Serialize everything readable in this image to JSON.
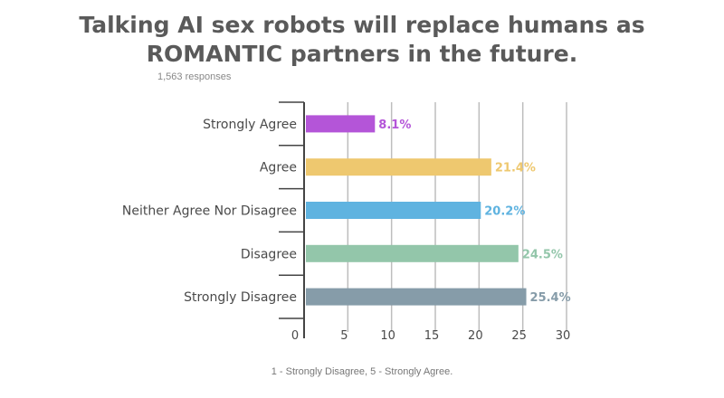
{
  "title_line1": "Talking AI sex robots will replace humans as",
  "title_line2": "ROMANTIC partners in the future.",
  "responses": "1,563 responses",
  "footnote": "1 - Strongly Disagree,  5 - Strongly Agree.",
  "chart_data": {
    "type": "bar",
    "orientation": "horizontal",
    "categories": [
      "Strongly Agree",
      "Agree",
      "Neither Agree Nor Disagree",
      "Disagree",
      "Strongly Disagree"
    ],
    "values": [
      8.1,
      21.4,
      20.2,
      24.5,
      25.4
    ],
    "data_labels": [
      "8.1%",
      "21.4%",
      "20.2%",
      "24.5%",
      "25.4%"
    ],
    "colors": [
      "#b455d8",
      "#eec86f",
      "#5fb3e0",
      "#93c6aa",
      "#869ca9"
    ],
    "xlim": [
      0,
      30
    ],
    "x_ticks": [
      0,
      5,
      10,
      15,
      20,
      25,
      30
    ],
    "grid": true,
    "legend": "none"
  }
}
